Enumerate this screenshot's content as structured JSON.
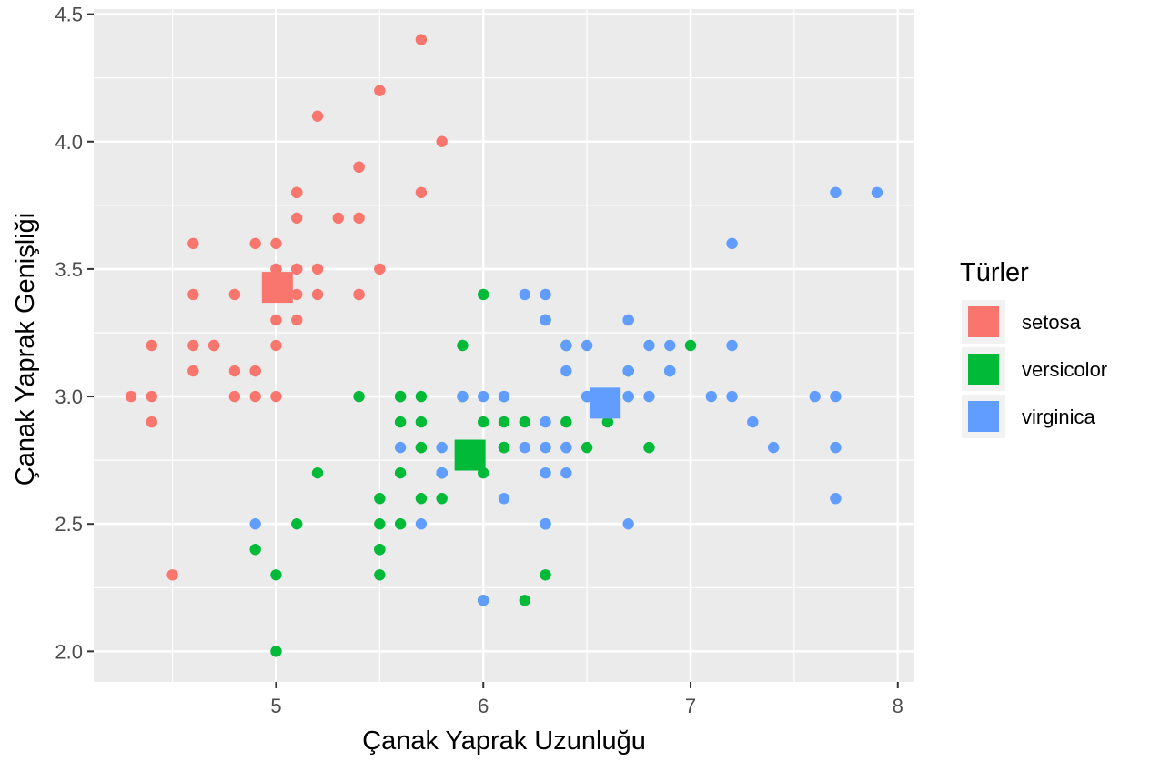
{
  "chart_data": {
    "type": "scatter",
    "title": "",
    "xlabel": "Çanak Yaprak Uzunluğu",
    "ylabel": "Çanak Yaprak Genişliği",
    "xlim": [
      4.12,
      8.08
    ],
    "ylim": [
      1.88,
      4.52
    ],
    "x_ticks": [
      5,
      6,
      7,
      8
    ],
    "y_ticks": [
      2.0,
      2.5,
      3.0,
      3.5,
      4.0,
      4.5
    ],
    "x_tick_labels": [
      "5",
      "6",
      "7",
      "8"
    ],
    "y_tick_labels": [
      "2.0",
      "2.5",
      "3.0",
      "3.5",
      "4.0",
      "4.5"
    ],
    "grid": true,
    "legend": {
      "title": "Türler",
      "position": "right",
      "entries": [
        "setosa",
        "versicolor",
        "virginica"
      ]
    },
    "series": [
      {
        "name": "setosa",
        "color": "#F8766D",
        "points": [
          [
            5.1,
            3.5
          ],
          [
            4.9,
            3.0
          ],
          [
            4.7,
            3.2
          ],
          [
            4.6,
            3.1
          ],
          [
            5.0,
            3.6
          ],
          [
            5.4,
            3.9
          ],
          [
            4.6,
            3.4
          ],
          [
            5.0,
            3.4
          ],
          [
            4.4,
            2.9
          ],
          [
            4.9,
            3.1
          ],
          [
            5.4,
            3.7
          ],
          [
            4.8,
            3.4
          ],
          [
            4.8,
            3.0
          ],
          [
            4.3,
            3.0
          ],
          [
            5.8,
            4.0
          ],
          [
            5.7,
            4.4
          ],
          [
            5.4,
            3.9
          ],
          [
            5.1,
            3.5
          ],
          [
            5.7,
            3.8
          ],
          [
            5.1,
            3.8
          ],
          [
            5.4,
            3.4
          ],
          [
            5.1,
            3.7
          ],
          [
            4.6,
            3.6
          ],
          [
            5.1,
            3.3
          ],
          [
            4.8,
            3.4
          ],
          [
            5.0,
            3.0
          ],
          [
            5.0,
            3.4
          ],
          [
            5.2,
            3.5
          ],
          [
            5.2,
            3.4
          ],
          [
            4.7,
            3.2
          ],
          [
            4.8,
            3.1
          ],
          [
            5.4,
            3.4
          ],
          [
            5.2,
            4.1
          ],
          [
            5.5,
            4.2
          ],
          [
            4.9,
            3.1
          ],
          [
            5.0,
            3.2
          ],
          [
            5.5,
            3.5
          ],
          [
            4.9,
            3.6
          ],
          [
            4.4,
            3.0
          ],
          [
            5.1,
            3.4
          ],
          [
            5.0,
            3.5
          ],
          [
            4.5,
            2.3
          ],
          [
            4.4,
            3.2
          ],
          [
            5.0,
            3.5
          ],
          [
            5.1,
            3.8
          ],
          [
            4.8,
            3.0
          ],
          [
            5.1,
            3.8
          ],
          [
            4.6,
            3.2
          ],
          [
            5.3,
            3.7
          ],
          [
            5.0,
            3.3
          ]
        ],
        "centroid": [
          5.006,
          3.428
        ]
      },
      {
        "name": "versicolor",
        "color": "#00BA38",
        "points": [
          [
            7.0,
            3.2
          ],
          [
            6.4,
            3.2
          ],
          [
            6.9,
            3.1
          ],
          [
            5.5,
            2.3
          ],
          [
            6.5,
            2.8
          ],
          [
            5.7,
            2.8
          ],
          [
            6.3,
            3.3
          ],
          [
            4.9,
            2.4
          ],
          [
            6.6,
            2.9
          ],
          [
            5.2,
            2.7
          ],
          [
            5.0,
            2.0
          ],
          [
            5.9,
            3.0
          ],
          [
            6.0,
            2.2
          ],
          [
            6.1,
            2.9
          ],
          [
            5.6,
            2.9
          ],
          [
            6.7,
            3.1
          ],
          [
            5.6,
            3.0
          ],
          [
            5.8,
            2.7
          ],
          [
            6.2,
            2.2
          ],
          [
            5.6,
            2.5
          ],
          [
            5.9,
            3.2
          ],
          [
            6.1,
            2.8
          ],
          [
            6.3,
            2.5
          ],
          [
            6.1,
            2.8
          ],
          [
            6.4,
            2.9
          ],
          [
            6.6,
            3.0
          ],
          [
            6.8,
            2.8
          ],
          [
            6.7,
            3.0
          ],
          [
            6.0,
            2.9
          ],
          [
            5.7,
            2.6
          ],
          [
            5.5,
            2.4
          ],
          [
            5.5,
            2.4
          ],
          [
            5.8,
            2.7
          ],
          [
            6.0,
            2.7
          ],
          [
            5.4,
            3.0
          ],
          [
            6.0,
            3.4
          ],
          [
            6.7,
            3.1
          ],
          [
            6.3,
            2.3
          ],
          [
            5.6,
            3.0
          ],
          [
            5.5,
            2.5
          ],
          [
            5.5,
            2.6
          ],
          [
            6.1,
            3.0
          ],
          [
            5.8,
            2.6
          ],
          [
            5.0,
            2.3
          ],
          [
            5.6,
            2.7
          ],
          [
            5.7,
            3.0
          ],
          [
            5.7,
            2.9
          ],
          [
            6.2,
            2.9
          ],
          [
            5.1,
            2.5
          ],
          [
            5.7,
            2.8
          ]
        ],
        "centroid": [
          5.936,
          2.77
        ]
      },
      {
        "name": "virginica",
        "color": "#619CFF",
        "points": [
          [
            6.3,
            3.3
          ],
          [
            5.8,
            2.7
          ],
          [
            7.1,
            3.0
          ],
          [
            6.3,
            2.9
          ],
          [
            6.5,
            3.0
          ],
          [
            7.6,
            3.0
          ],
          [
            4.9,
            2.5
          ],
          [
            7.3,
            2.9
          ],
          [
            6.7,
            2.5
          ],
          [
            7.2,
            3.6
          ],
          [
            6.5,
            3.2
          ],
          [
            6.4,
            2.7
          ],
          [
            6.8,
            3.0
          ],
          [
            5.7,
            2.5
          ],
          [
            5.8,
            2.8
          ],
          [
            6.4,
            3.2
          ],
          [
            6.5,
            3.0
          ],
          [
            7.7,
            3.8
          ],
          [
            7.7,
            2.6
          ],
          [
            6.0,
            2.2
          ],
          [
            6.9,
            3.2
          ],
          [
            5.6,
            2.8
          ],
          [
            7.7,
            2.8
          ],
          [
            6.3,
            2.7
          ],
          [
            6.7,
            3.3
          ],
          [
            7.2,
            3.2
          ],
          [
            6.2,
            2.8
          ],
          [
            6.1,
            3.0
          ],
          [
            6.4,
            2.8
          ],
          [
            7.2,
            3.0
          ],
          [
            7.4,
            2.8
          ],
          [
            7.9,
            3.8
          ],
          [
            6.4,
            2.8
          ],
          [
            6.3,
            2.8
          ],
          [
            6.1,
            2.6
          ],
          [
            7.7,
            3.0
          ],
          [
            6.3,
            3.4
          ],
          [
            6.4,
            3.1
          ],
          [
            6.0,
            3.0
          ],
          [
            6.9,
            3.1
          ],
          [
            6.7,
            3.1
          ],
          [
            6.9,
            3.1
          ],
          [
            5.8,
            2.7
          ],
          [
            6.8,
            3.2
          ],
          [
            6.7,
            3.3
          ],
          [
            6.7,
            3.0
          ],
          [
            6.3,
            2.5
          ],
          [
            6.5,
            3.0
          ],
          [
            6.2,
            3.4
          ],
          [
            5.9,
            3.0
          ]
        ],
        "centroid": [
          6.588,
          2.974
        ]
      }
    ]
  }
}
